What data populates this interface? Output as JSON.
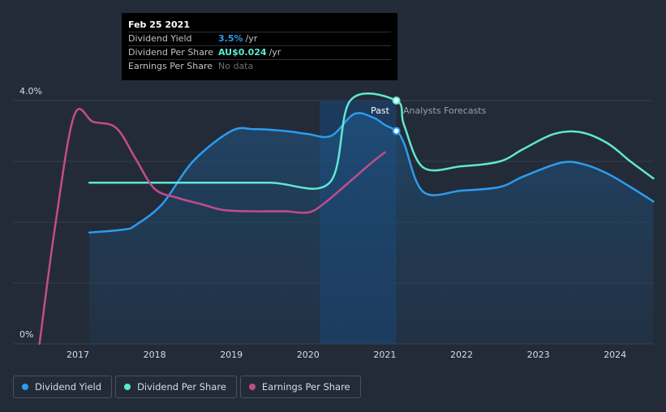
{
  "tooltip": {
    "date": "Feb 25 2021",
    "rows": [
      {
        "name": "Dividend Yield",
        "value": "3.5%",
        "unit": "/yr",
        "color": "#2c9cf0"
      },
      {
        "name": "Dividend Per Share",
        "value": "AU$0.024",
        "unit": "/yr",
        "color": "#5ee8d2"
      },
      {
        "name": "Earnings Per Share",
        "value": "No data",
        "unit": "",
        "color": "#6b6f76"
      }
    ]
  },
  "labels": {
    "past": "Past",
    "forecast": "Analysts Forecasts"
  },
  "legend": [
    {
      "label": "Dividend Yield",
      "color": "#2c9cf0"
    },
    {
      "label": "Dividend Per Share",
      "color": "#5ee8d2"
    },
    {
      "label": "Earnings Per Share",
      "color": "#c24c8c"
    }
  ],
  "chart_data": {
    "type": "line",
    "y_tick_labels": [
      "4.0%",
      "0%"
    ],
    "ylim": [
      0,
      4.0
    ],
    "x_ticks": [
      2017,
      2018,
      2019,
      2020,
      2021,
      2022,
      2023,
      2024
    ],
    "xlim": [
      2016.0,
      2024.5
    ],
    "past_end": 2021.15,
    "shaded_start": 2020.15,
    "series": [
      {
        "name": "Dividend Yield",
        "color": "#2c9cf0",
        "scale": "yield",
        "points": [
          [
            2017.15,
            1.83
          ],
          [
            2017.6,
            1.88
          ],
          [
            2017.75,
            1.95
          ],
          [
            2018.1,
            2.3
          ],
          [
            2018.5,
            3.0
          ],
          [
            2019.0,
            3.5
          ],
          [
            2019.3,
            3.53
          ],
          [
            2019.7,
            3.5
          ],
          [
            2020.0,
            3.45
          ],
          [
            2020.3,
            3.42
          ],
          [
            2020.6,
            3.78
          ],
          [
            2020.85,
            3.72
          ],
          [
            2021.0,
            3.6
          ],
          [
            2021.15,
            3.5
          ],
          [
            2021.25,
            3.3
          ],
          [
            2021.5,
            2.5
          ],
          [
            2022.0,
            2.52
          ],
          [
            2022.5,
            2.58
          ],
          [
            2022.8,
            2.75
          ],
          [
            2023.3,
            2.98
          ],
          [
            2023.6,
            2.95
          ],
          [
            2023.9,
            2.8
          ],
          [
            2024.2,
            2.58
          ],
          [
            2024.5,
            2.34
          ]
        ]
      },
      {
        "name": "Dividend Per Share",
        "color": "#5ee8d2",
        "scale": "dps",
        "points": [
          [
            2017.15,
            2.65
          ],
          [
            2017.5,
            2.65
          ],
          [
            2018.5,
            2.65
          ],
          [
            2019.5,
            2.65
          ],
          [
            2020.28,
            2.65
          ],
          [
            2020.55,
            4.0
          ],
          [
            2021.15,
            4.0
          ],
          [
            2021.25,
            3.6
          ],
          [
            2021.5,
            2.9
          ],
          [
            2022.0,
            2.92
          ],
          [
            2022.5,
            3.0
          ],
          [
            2022.8,
            3.2
          ],
          [
            2023.2,
            3.45
          ],
          [
            2023.55,
            3.48
          ],
          [
            2023.9,
            3.3
          ],
          [
            2024.2,
            3.0
          ],
          [
            2024.5,
            2.72
          ]
        ]
      },
      {
        "name": "Earnings Per Share",
        "color": "#c24c8c",
        "scale": "eps",
        "points": [
          [
            2016.5,
            0.0
          ],
          [
            2016.7,
            1.9
          ],
          [
            2016.95,
            3.75
          ],
          [
            2017.2,
            3.65
          ],
          [
            2017.5,
            3.55
          ],
          [
            2017.75,
            3.05
          ],
          [
            2018.0,
            2.55
          ],
          [
            2018.3,
            2.4
          ],
          [
            2018.6,
            2.3
          ],
          [
            2018.9,
            2.2
          ],
          [
            2019.3,
            2.18
          ],
          [
            2019.7,
            2.18
          ],
          [
            2020.0,
            2.16
          ],
          [
            2020.2,
            2.3
          ],
          [
            2020.5,
            2.62
          ],
          [
            2020.8,
            2.95
          ],
          [
            2021.0,
            3.15
          ]
        ]
      }
    ],
    "markers": [
      {
        "series": "Dividend Yield",
        "x": 2021.15,
        "y": 3.5
      },
      {
        "series": "Dividend Per Share",
        "x": 2021.15,
        "y": 4.0
      }
    ]
  }
}
